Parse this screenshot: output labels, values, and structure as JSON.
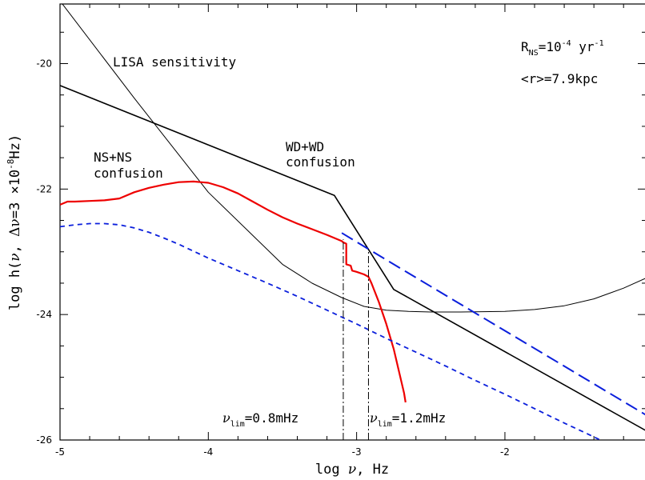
{
  "chart_data": {
    "type": "line",
    "title": "",
    "xlabel": {
      "pre": "log ",
      "sym": "ν",
      "post": ", Hz"
    },
    "ylabel": {
      "pre": "log h(",
      "sym1": "ν",
      "mid": ", ",
      "sym2": "Δν",
      "post": "=3 ×10",
      "exp": "-8",
      "unit": "Hz)"
    },
    "xlim": [
      -5,
      -1.05
    ],
    "ylim": [
      -26,
      -19.05
    ],
    "xticks": [
      -5,
      -4,
      -3,
      -2
    ],
    "yticks": [
      -26,
      -24,
      -22,
      -20
    ],
    "grid": false,
    "legend": "none",
    "annotations": {
      "rate": {
        "base": "R",
        "sub": "NS",
        "eq": "=10",
        "exp": "-4",
        "unit": " yr",
        "unit_exp": "-1"
      },
      "distance": "<r>=7.9kpc",
      "lisa": "LISA sensitivity",
      "ns_line1": "NS+NS",
      "ns_line2": "confusion",
      "wd_line1": "WD+WD",
      "wd_line2": "confusion",
      "nu_lim_1": {
        "sym": "ν",
        "sub": "lim",
        "val": "=0.8mHz"
      },
      "nu_lim_2": {
        "sym": "ν",
        "sub": "lim",
        "val": "=1.2mHz"
      }
    },
    "series": [
      {
        "id": "lisa_sensitivity",
        "color": "#000000",
        "dash": "none",
        "width": 1,
        "x": [
          -5.0,
          -4.5,
          -4.0,
          -3.5,
          -3.3,
          -3.1,
          -2.95,
          -2.8,
          -2.65,
          -2.5,
          -2.3,
          -2.0,
          -1.8,
          -1.6,
          -1.4,
          -1.2,
          -1.05
        ],
        "y": [
          -19.0,
          -20.55,
          -22.05,
          -23.2,
          -23.5,
          -23.73,
          -23.87,
          -23.93,
          -23.95,
          -23.96,
          -23.96,
          -23.95,
          -23.92,
          -23.86,
          -23.75,
          -23.58,
          -23.42
        ]
      },
      {
        "id": "wd_confusion",
        "color": "#000000",
        "dash": "none",
        "width": 1.6,
        "x": [
          -5.0,
          -3.15,
          -2.75,
          -1.05
        ],
        "y": [
          -20.35,
          -22.1,
          -23.6,
          -25.85
        ]
      },
      {
        "id": "ns_confusion",
        "color": "#ee0000",
        "dash": "none",
        "width": 2.2,
        "x": [
          -5.0,
          -4.95,
          -4.9,
          -4.8,
          -4.7,
          -4.6,
          -4.5,
          -4.4,
          -4.3,
          -4.2,
          -4.1,
          -4.0,
          -3.9,
          -3.8,
          -3.7,
          -3.6,
          -3.5,
          -3.4,
          -3.3,
          -3.2,
          -3.1,
          -3.09,
          -3.07,
          -3.07,
          -3.04,
          -3.03,
          -3.0,
          -2.95,
          -2.92,
          -2.9,
          -2.85,
          -2.8,
          -2.75,
          -2.72,
          -2.7,
          -2.68,
          -2.67
        ],
        "y": [
          -22.25,
          -22.2,
          -22.2,
          -22.19,
          -22.18,
          -22.15,
          -22.05,
          -21.98,
          -21.93,
          -21.89,
          -21.88,
          -21.9,
          -21.97,
          -22.07,
          -22.2,
          -22.33,
          -22.45,
          -22.55,
          -22.64,
          -22.73,
          -22.83,
          -22.85,
          -22.87,
          -23.2,
          -23.22,
          -23.3,
          -23.32,
          -23.36,
          -23.4,
          -23.5,
          -23.8,
          -24.15,
          -24.55,
          -24.85,
          -25.05,
          -25.25,
          -25.4
        ]
      },
      {
        "id": "ns_confusion_high",
        "color": "#0b1fdc",
        "dash": "16 7",
        "width": 2,
        "x": [
          -3.1,
          -2.75,
          -1.05
        ],
        "y": [
          -22.7,
          -23.2,
          -25.6
        ]
      },
      {
        "id": "ns_confusion_low",
        "color": "#0b1fdc",
        "dash": "6 5",
        "width": 1.8,
        "x": [
          -5.0,
          -4.9,
          -4.8,
          -4.7,
          -4.6,
          -4.5,
          -4.4,
          -4.3,
          -4.2,
          -4.1,
          -4.0,
          -3.9,
          -3.8,
          -3.6,
          -3.4,
          -3.2,
          -3.0,
          -2.8,
          -2.6,
          -2.4,
          -2.2,
          -2.0,
          -1.8,
          -1.6,
          -1.4,
          -1.2,
          -1.05
        ],
        "y": [
          -22.6,
          -22.57,
          -22.55,
          -22.55,
          -22.57,
          -22.62,
          -22.69,
          -22.78,
          -22.88,
          -22.99,
          -23.1,
          -23.2,
          -23.3,
          -23.5,
          -23.71,
          -23.93,
          -24.15,
          -24.38,
          -24.6,
          -24.82,
          -25.05,
          -25.27,
          -25.5,
          -25.73,
          -25.95,
          -26.18,
          -26.35
        ]
      }
    ],
    "vlines": [
      {
        "x": -3.09,
        "y0": -26,
        "y1": -22.8
      },
      {
        "x": -2.92,
        "y0": -26,
        "y1": -22.95
      }
    ]
  }
}
